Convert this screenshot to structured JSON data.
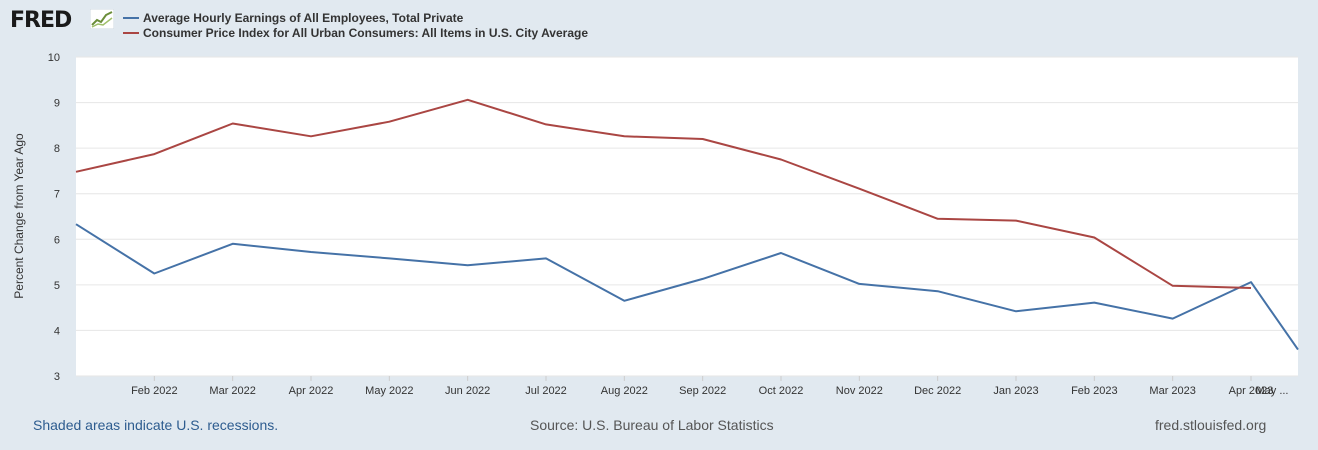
{
  "header": {
    "logo_text": "FRED"
  },
  "chart_data": {
    "type": "line",
    "ylabel": "Percent Change from Year Ago",
    "xlabel": "",
    "ylim": [
      3,
      10
    ],
    "yticks": [
      3,
      4,
      5,
      6,
      7,
      8,
      9,
      10
    ],
    "x_index_range": [
      0,
      15.6
    ],
    "x_ticks": [
      {
        "label": "Feb 2022",
        "index": 1
      },
      {
        "label": "Mar 2022",
        "index": 2
      },
      {
        "label": "Apr 2022",
        "index": 3
      },
      {
        "label": "May 2022",
        "index": 4
      },
      {
        "label": "Jun 2022",
        "index": 5
      },
      {
        "label": "Jul 2022",
        "index": 6
      },
      {
        "label": "Aug 2022",
        "index": 7
      },
      {
        "label": "Sep 2022",
        "index": 8
      },
      {
        "label": "Oct 2022",
        "index": 9
      },
      {
        "label": "Nov 2022",
        "index": 10
      },
      {
        "label": "Dec 2022",
        "index": 11
      },
      {
        "label": "Jan 2023",
        "index": 12
      },
      {
        "label": "Feb 2023",
        "index": 13
      },
      {
        "label": "Mar 2023",
        "index": 14
      },
      {
        "label": "Apr 2023",
        "index": 15
      },
      {
        "label": "May ...",
        "index": 16
      }
    ],
    "series": [
      {
        "name": "Average Hourly Earnings of All Employees, Total Private",
        "color": "#4572a7",
        "x": [
          0,
          1,
          2,
          3,
          4,
          5,
          6,
          7,
          8,
          9,
          10,
          11,
          12,
          13,
          14,
          15,
          15.6
        ],
        "values": [
          6.33,
          5.25,
          5.9,
          5.72,
          5.58,
          5.43,
          5.58,
          4.65,
          5.13,
          5.7,
          5.02,
          4.86,
          4.42,
          4.61,
          4.26,
          5.06,
          3.58
        ]
      },
      {
        "name": "Consumer Price Index for All Urban Consumers: All Items in U.S. City Average",
        "color": "#aa4643",
        "x": [
          0,
          1,
          2,
          3,
          4,
          5,
          6,
          7,
          8,
          9,
          10,
          11,
          12,
          13,
          14,
          15
        ],
        "values": [
          7.48,
          7.87,
          8.54,
          8.26,
          8.58,
          9.06,
          8.52,
          8.26,
          8.2,
          7.75,
          7.11,
          6.45,
          6.41,
          6.04,
          4.98,
          4.93
        ]
      }
    ]
  },
  "footer": {
    "recession_note": "Shaded areas indicate U.S. recessions.",
    "source": "Source: U.S. Bureau of Labor Statistics",
    "url": "fred.stlouisfed.org"
  }
}
